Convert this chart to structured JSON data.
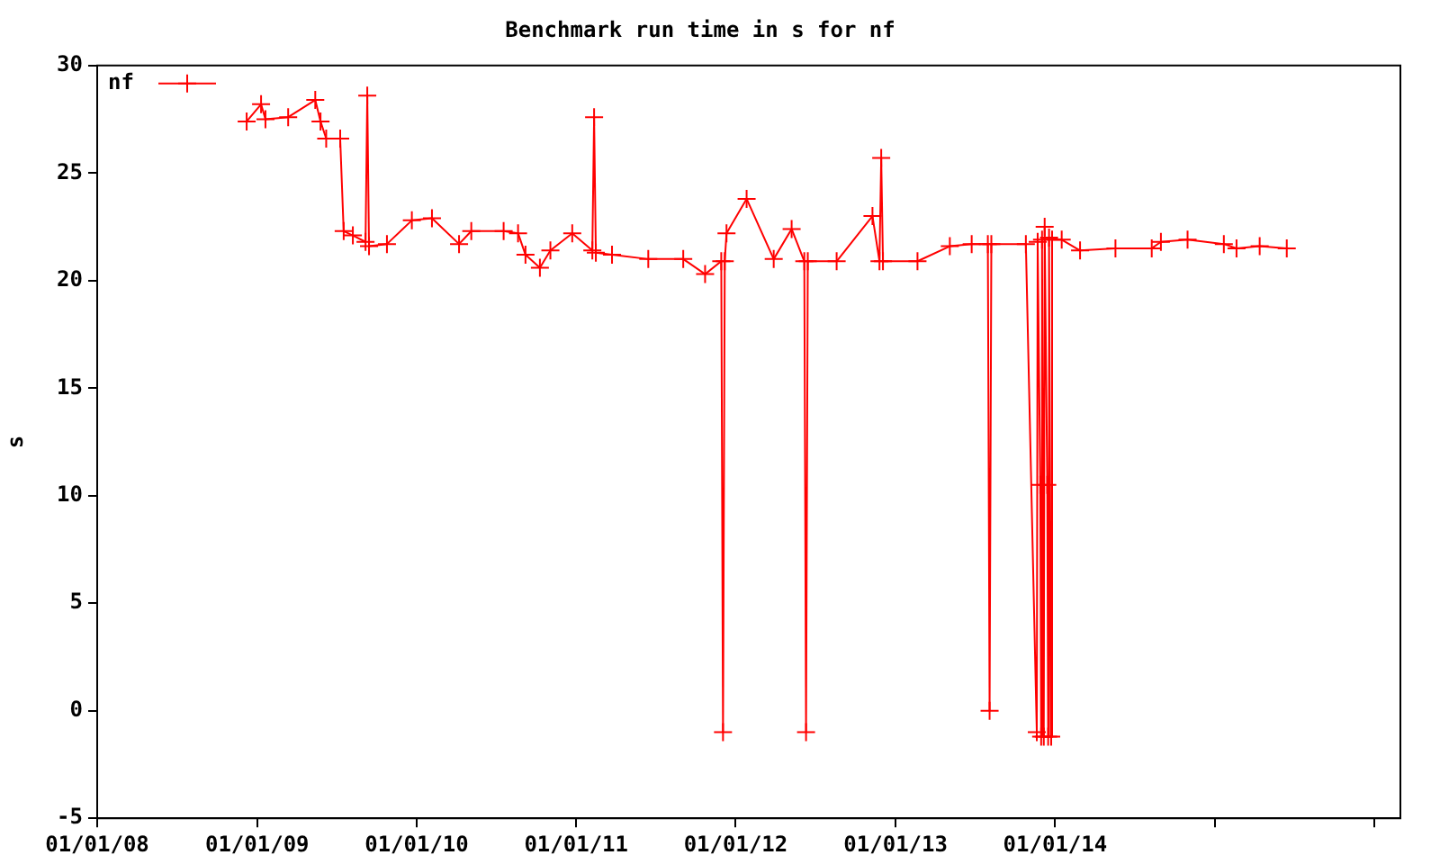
{
  "chart_data": {
    "type": "line",
    "title": "Benchmark run time in s for nf",
    "ylabel": "s",
    "xlim": [
      "2008-01-01",
      "2016-03-01"
    ],
    "xticks": [
      {
        "value": "2008-01-01",
        "label": "01/01/08"
      },
      {
        "value": "2009-01-01",
        "label": "01/01/09"
      },
      {
        "value": "2010-01-01",
        "label": "01/01/10"
      },
      {
        "value": "2011-01-01",
        "label": "01/01/11"
      },
      {
        "value": "2012-01-01",
        "label": "01/01/12"
      },
      {
        "value": "2013-01-01",
        "label": "01/01/13"
      },
      {
        "value": "2014-01-01",
        "label": "01/01/14"
      },
      {
        "value": "2015-01-01",
        "label": null
      },
      {
        "value": "2016-01-01",
        "label": null
      }
    ],
    "ylim": [
      -5,
      30
    ],
    "yticks": [
      -5,
      0,
      5,
      10,
      15,
      20,
      25,
      30
    ],
    "legend": "top left",
    "marker": "cross",
    "line_style": "solid",
    "grid": false,
    "x": [
      "2008-12-08",
      "2009-01-10",
      "2009-01-20",
      "2009-03-13",
      "2009-05-14",
      "2009-05-26",
      "2009-06-08",
      "2009-07-10",
      "2009-07-18",
      "2009-08-08",
      "2009-09-06",
      "2009-09-10",
      "2009-09-14",
      "2009-10-25",
      "2009-12-21",
      "2010-02-05",
      "2010-04-08",
      "2010-05-06",
      "2010-07-19",
      "2010-08-21",
      "2010-09-07",
      "2010-10-10",
      "2010-11-03",
      "2010-12-23",
      "2011-02-07",
      "2011-02-11",
      "2011-02-15",
      "2011-03-24",
      "2011-06-15",
      "2011-09-03",
      "2011-10-23",
      "2011-11-29",
      "2011-12-03",
      "2011-12-07",
      "2011-12-11",
      "2012-01-26",
      "2012-03-28",
      "2012-05-08",
      "2012-06-06",
      "2012-06-10",
      "2012-06-14",
      "2012-08-19",
      "2012-11-09",
      "2012-11-25",
      "2012-11-29",
      "2012-12-03",
      "2013-02-20",
      "2013-05-05",
      "2013-06-24",
      "2013-07-31",
      "2013-08-04",
      "2013-08-08",
      "2013-10-26",
      "2013-11-20",
      "2013-11-22",
      "2013-11-28",
      "2013-11-30",
      "2013-12-02",
      "2013-12-06",
      "2013-12-08",
      "2013-12-14",
      "2013-12-16",
      "2013-12-18",
      "2013-12-23",
      "2013-12-25",
      "2014-01-16",
      "2014-02-27",
      "2014-05-19",
      "2014-08-10",
      "2014-08-31",
      "2014-10-31",
      "2015-01-22",
      "2015-02-20",
      "2015-04-14",
      "2015-06-15"
    ],
    "series": [
      {
        "name": "nf",
        "color": "#ff0000",
        "values": [
          27.4,
          28.2,
          27.5,
          27.6,
          28.4,
          27.4,
          26.6,
          26.6,
          22.3,
          22.1,
          21.8,
          28.6,
          21.6,
          21.7,
          22.8,
          22.9,
          21.7,
          22.3,
          22.3,
          22.2,
          21.2,
          20.6,
          21.4,
          22.2,
          21.4,
          27.6,
          21.3,
          21.2,
          21.0,
          21.0,
          20.3,
          20.9,
          -1.0,
          20.9,
          22.2,
          23.8,
          21.0,
          22.4,
          20.9,
          -1.0,
          20.9,
          20.9,
          23.0,
          20.9,
          25.7,
          20.9,
          20.9,
          21.6,
          21.7,
          21.7,
          0.0,
          21.7,
          21.7,
          -1.0,
          21.8,
          10.5,
          -1.2,
          21.9,
          -1.2,
          22.5,
          10.5,
          -1.2,
          22.0,
          -1.2,
          21.9,
          21.9,
          21.4,
          21.5,
          21.5,
          21.8,
          21.9,
          21.7,
          21.5,
          21.6,
          21.5
        ]
      }
    ]
  }
}
